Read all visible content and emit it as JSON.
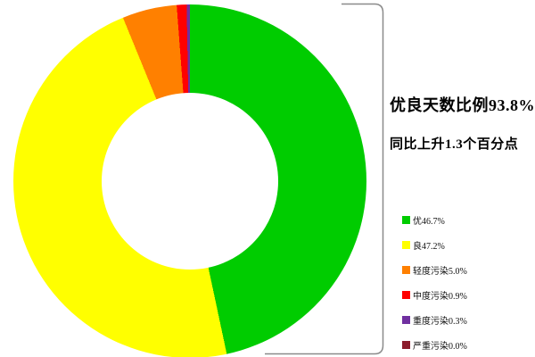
{
  "chart_data": {
    "type": "pie",
    "donut": true,
    "start_angle_deg": 0,
    "direction": "clockwise",
    "title": "优良天数比例93.8%",
    "subtitle": "同比上升1.3个百分点",
    "legend_position": "right",
    "series": [
      {
        "name": "优",
        "value": 46.7,
        "color": "#00cc00",
        "label": "优46.7%"
      },
      {
        "name": "良",
        "value": 47.2,
        "color": "#ffff00",
        "label": "良47.2%"
      },
      {
        "name": "轻度污染",
        "value": 5.0,
        "color": "#ff8000",
        "label": "轻度污染5.0%"
      },
      {
        "name": "中度污染",
        "value": 0.9,
        "color": "#ff0000",
        "label": "中度污染0.9%"
      },
      {
        "name": "重度污染",
        "value": 0.3,
        "color": "#7030a0",
        "label": "重度污染0.3%"
      },
      {
        "name": "严重污染",
        "value": 0.0,
        "color": "#8b1c2c",
        "label": "严重污染0.0%"
      }
    ],
    "annotation_bracket_color": "#8a8a8a"
  }
}
